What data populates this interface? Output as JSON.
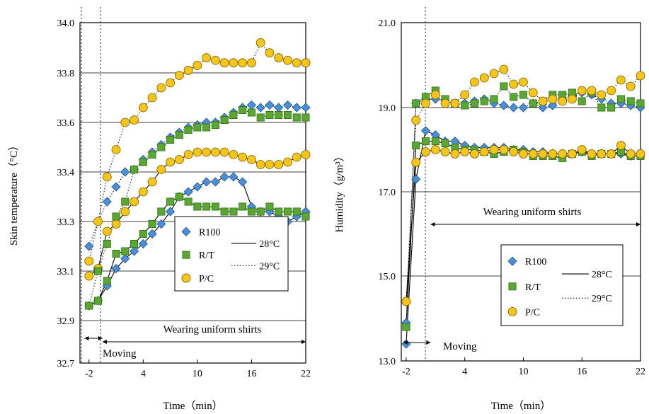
{
  "chart_data": [
    {
      "type": "line",
      "xlabel": "Time（min）",
      "ylabel": "Skin temperature（°C）",
      "xlim": [
        -3,
        22
      ],
      "ylim": [
        32.7,
        34.0
      ],
      "xticks": [
        -2,
        4,
        10,
        16,
        22
      ],
      "xtick_labels": [
        "-2",
        "4",
        "10",
        "16",
        "22"
      ],
      "yticks": [
        32.7,
        32.9,
        33.1,
        33.3,
        33.4,
        33.6,
        33.8,
        34.0
      ],
      "ytick_labels": [
        "32.7",
        "32.9",
        "33.1",
        "33.3",
        "33.4",
        "33.6",
        "33.8",
        "34.0"
      ],
      "grid": true,
      "vlines": [
        -2.5,
        -0.5
      ],
      "annotations": {
        "moving": {
          "text": "Moving",
          "x_from": -2.5,
          "x_to": -0.5,
          "y": 32.8
        },
        "wearing": {
          "text": "Wearing uniform shirts",
          "x_from": -0.5,
          "x_to": 22,
          "y": 32.87
        }
      },
      "legend": {
        "position": "center-right",
        "markers": [
          "R100",
          "R/T",
          "P/C"
        ],
        "lines": [
          "28°C",
          "29°C"
        ]
      },
      "x": [
        -2,
        -1,
        0,
        1,
        2,
        3,
        4,
        5,
        6,
        7,
        8,
        9,
        10,
        11,
        12,
        13,
        14,
        15,
        16,
        17,
        18,
        19,
        20,
        21,
        22
      ],
      "series": [
        {
          "name": "R100",
          "marker": "diamond",
          "color": "#4a90d9",
          "temp": "29°C",
          "line": "dotted",
          "values": [
            33.2,
            33.3,
            33.34,
            33.37,
            33.4,
            33.41,
            33.45,
            33.48,
            33.51,
            33.54,
            33.56,
            33.58,
            33.59,
            33.6,
            33.6,
            33.62,
            33.64,
            33.66,
            33.67,
            33.66,
            33.67,
            33.66,
            33.67,
            33.66,
            33.66
          ]
        },
        {
          "name": "R/T",
          "marker": "square",
          "color": "#5aa832",
          "temp": "29°C",
          "line": "dotted",
          "values": [
            32.96,
            33.1,
            33.21,
            33.31,
            33.34,
            33.41,
            33.44,
            33.47,
            33.5,
            33.53,
            33.55,
            33.57,
            33.58,
            33.58,
            33.59,
            33.61,
            33.63,
            33.65,
            33.64,
            33.62,
            33.63,
            33.63,
            33.63,
            33.62,
            33.62
          ]
        },
        {
          "name": "P/C",
          "marker": "circle",
          "color": "#f5c518",
          "temp": "29°C",
          "line": "dotted",
          "values": [
            33.14,
            33.3,
            33.39,
            33.49,
            33.6,
            33.61,
            33.66,
            33.7,
            33.74,
            33.76,
            33.79,
            33.81,
            33.83,
            33.86,
            33.85,
            33.84,
            33.84,
            33.84,
            33.84,
            33.92,
            33.88,
            33.86,
            33.85,
            33.84,
            33.84
          ]
        },
        {
          "name": "R100",
          "marker": "diamond",
          "color": "#4a90d9",
          "temp": "28°C",
          "line": "solid",
          "values": [
            32.96,
            32.98,
            33.04,
            33.11,
            33.15,
            33.18,
            33.21,
            33.25,
            33.29,
            33.32,
            33.35,
            33.36,
            33.37,
            33.38,
            33.38,
            33.39,
            33.39,
            33.38,
            33.33,
            33.32,
            33.32,
            33.31,
            33.3,
            33.31,
            33.32
          ]
        },
        {
          "name": "R/T",
          "marker": "square",
          "color": "#5aa832",
          "temp": "28°C",
          "line": "solid",
          "values": [
            32.96,
            32.98,
            33.06,
            33.17,
            33.18,
            33.21,
            33.25,
            33.29,
            33.32,
            33.34,
            33.35,
            33.34,
            33.33,
            33.33,
            33.33,
            33.32,
            33.32,
            33.33,
            33.32,
            33.32,
            33.33,
            33.32,
            33.32,
            33.32,
            33.31
          ]
        },
        {
          "name": "P/C",
          "marker": "circle",
          "color": "#f5c518",
          "temp": "28°C",
          "line": "solid",
          "values": [
            33.08,
            33.11,
            33.26,
            33.29,
            33.32,
            33.34,
            33.36,
            33.38,
            33.41,
            33.44,
            33.45,
            33.47,
            33.48,
            33.48,
            33.48,
            33.48,
            33.47,
            33.46,
            33.45,
            33.43,
            33.43,
            33.43,
            33.44,
            33.46,
            33.47
          ]
        }
      ]
    },
    {
      "type": "line",
      "xlabel": "Time（min）",
      "ylabel": "Humidity（g/m³）",
      "xlim": [
        -2.5,
        22
      ],
      "ylim": [
        13.0,
        21.0
      ],
      "xticks": [
        -2,
        4,
        10,
        16,
        22
      ],
      "xtick_labels": [
        "-2",
        "4",
        "10",
        "16",
        "22"
      ],
      "yticks": [
        13.0,
        15.0,
        17.0,
        19.0,
        21.0
      ],
      "ytick_labels": [
        "13.0",
        "15.0",
        "17.0",
        "19.0",
        "21.0"
      ],
      "grid": true,
      "vlines": [
        0.5
      ],
      "annotations": {
        "moving": {
          "text": "Moving",
          "x_from": -2.3,
          "x_to": 0.5,
          "y": 13.45
        },
        "wearing": {
          "text": "Wearing uniform shirts",
          "x_from": 0.5,
          "x_to": 22,
          "y": 16.6
        }
      },
      "legend": {
        "position": "center-right",
        "markers": [
          "R100",
          "R/T",
          "P/C"
        ],
        "lines": [
          "28°C",
          "29°C"
        ]
      },
      "x": [
        -2,
        -1,
        0,
        1,
        2,
        3,
        4,
        5,
        6,
        7,
        8,
        9,
        10,
        11,
        12,
        13,
        14,
        15,
        16,
        17,
        18,
        19,
        20,
        21,
        22
      ],
      "series": [
        {
          "name": "R100",
          "marker": "diamond",
          "color": "#4a90d9",
          "temp": "29°C",
          "line": "dotted",
          "values": [
            13.9,
            19.1,
            19.2,
            19.2,
            19.15,
            19.1,
            19.1,
            19.15,
            19.2,
            19.1,
            19.05,
            19.0,
            19.0,
            19.1,
            19.0,
            19.05,
            19.2,
            19.3,
            19.35,
            19.3,
            19.2,
            19.1,
            19.1,
            19.05,
            19.0
          ]
        },
        {
          "name": "R/T",
          "marker": "square",
          "color": "#5aa832",
          "temp": "29°C",
          "line": "dotted",
          "values": [
            13.8,
            19.1,
            19.25,
            19.4,
            19.2,
            19.1,
            19.05,
            19.1,
            19.15,
            19.2,
            19.5,
            19.25,
            19.3,
            19.1,
            19.15,
            19.3,
            19.3,
            19.35,
            19.15,
            19.35,
            19.0,
            19.0,
            19.2,
            19.15,
            19.1
          ]
        },
        {
          "name": "P/C",
          "marker": "circle",
          "color": "#f5c518",
          "temp": "29°C",
          "line": "dotted",
          "values": [
            14.4,
            18.7,
            19.1,
            19.3,
            19.1,
            19.1,
            19.3,
            19.6,
            19.7,
            19.8,
            19.9,
            19.55,
            19.6,
            19.35,
            19.15,
            19.2,
            19.15,
            19.2,
            19.4,
            19.4,
            19.3,
            19.4,
            19.65,
            19.5,
            19.75
          ]
        },
        {
          "name": "R100",
          "marker": "diamond",
          "color": "#4a90d9",
          "temp": "28°C",
          "line": "solid",
          "values": [
            13.4,
            17.3,
            18.45,
            18.35,
            18.2,
            18.2,
            18.1,
            18.05,
            18.05,
            18.05,
            18.05,
            18.0,
            18.0,
            17.95,
            17.95,
            17.9,
            17.9,
            17.9,
            17.95,
            17.9,
            17.9,
            17.9,
            17.9,
            17.85,
            17.85
          ]
        },
        {
          "name": "R/T",
          "marker": "square",
          "color": "#5aa832",
          "temp": "28°C",
          "line": "solid",
          "values": [
            13.8,
            18.1,
            18.2,
            18.2,
            18.15,
            18.05,
            18.0,
            18.0,
            17.95,
            17.9,
            17.95,
            18.0,
            17.95,
            17.85,
            17.85,
            17.85,
            17.8,
            17.9,
            17.95,
            17.85,
            17.9,
            17.9,
            17.95,
            17.85,
            17.85
          ]
        },
        {
          "name": "P/C",
          "marker": "circle",
          "color": "#f5c518",
          "temp": "28°C",
          "line": "solid",
          "values": [
            14.4,
            17.7,
            17.95,
            18.0,
            17.95,
            17.9,
            17.95,
            17.9,
            17.95,
            18.0,
            18.0,
            17.95,
            17.9,
            17.9,
            17.9,
            17.9,
            17.9,
            17.9,
            18.0,
            17.9,
            17.9,
            17.9,
            18.1,
            17.9,
            17.9
          ]
        }
      ]
    }
  ]
}
